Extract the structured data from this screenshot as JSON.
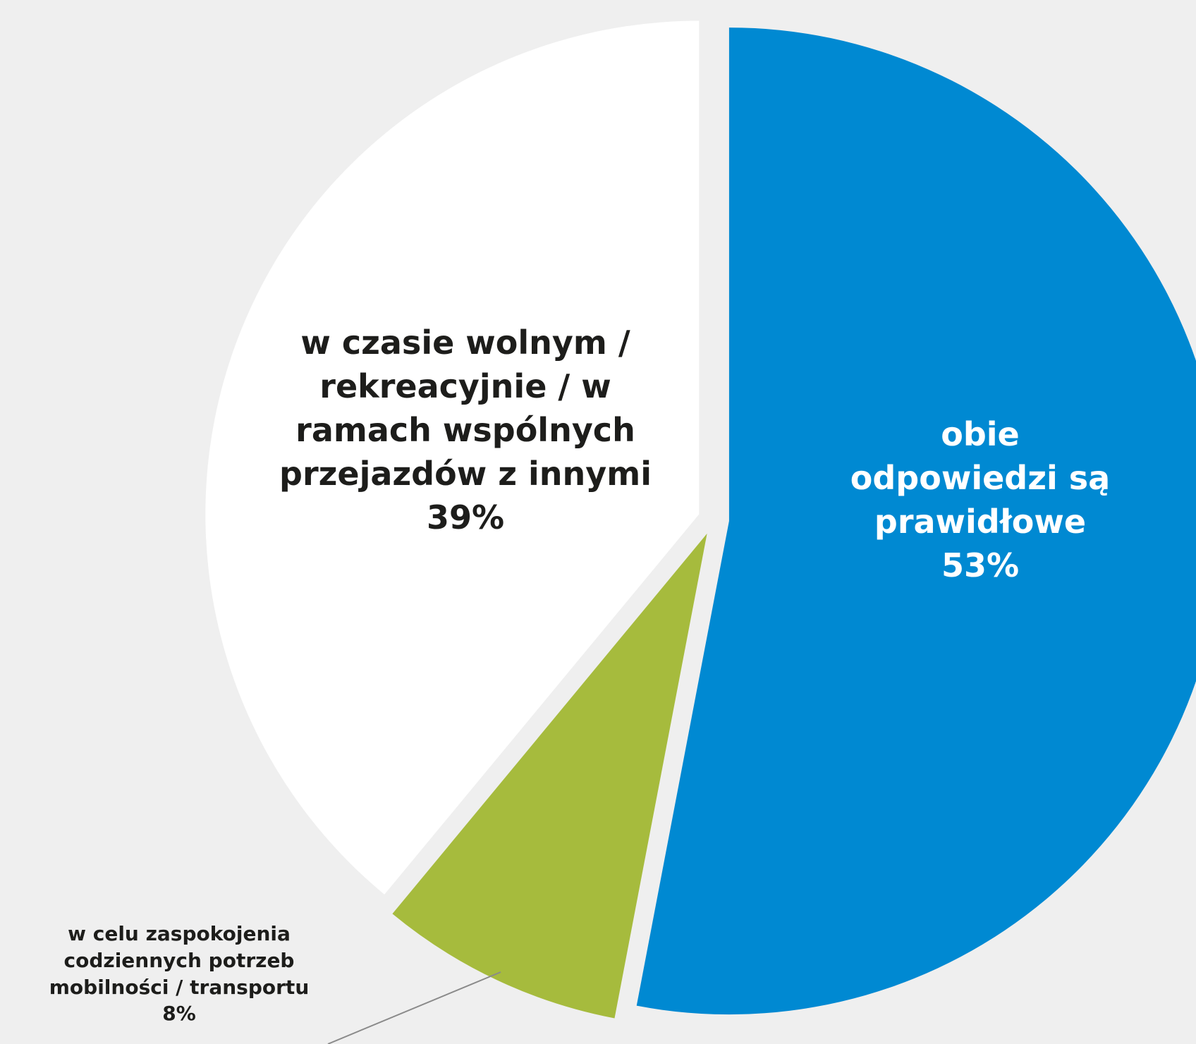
{
  "chart_data": {
    "type": "pie",
    "categories": [
      "obie odpowiedzi są prawidłowe",
      "w celu zaspokojenia codziennych potrzeb mobilności / transportu",
      "w czasie wolnym / rekreacyjnie / w ramach wspólnych przejazdów z innymi"
    ],
    "values": [
      53,
      8,
      39
    ],
    "value_labels": [
      "53%",
      "8%",
      "39%"
    ],
    "colors": [
      "#0089d2",
      "#a6bb3d",
      "#ffffff"
    ]
  }
}
